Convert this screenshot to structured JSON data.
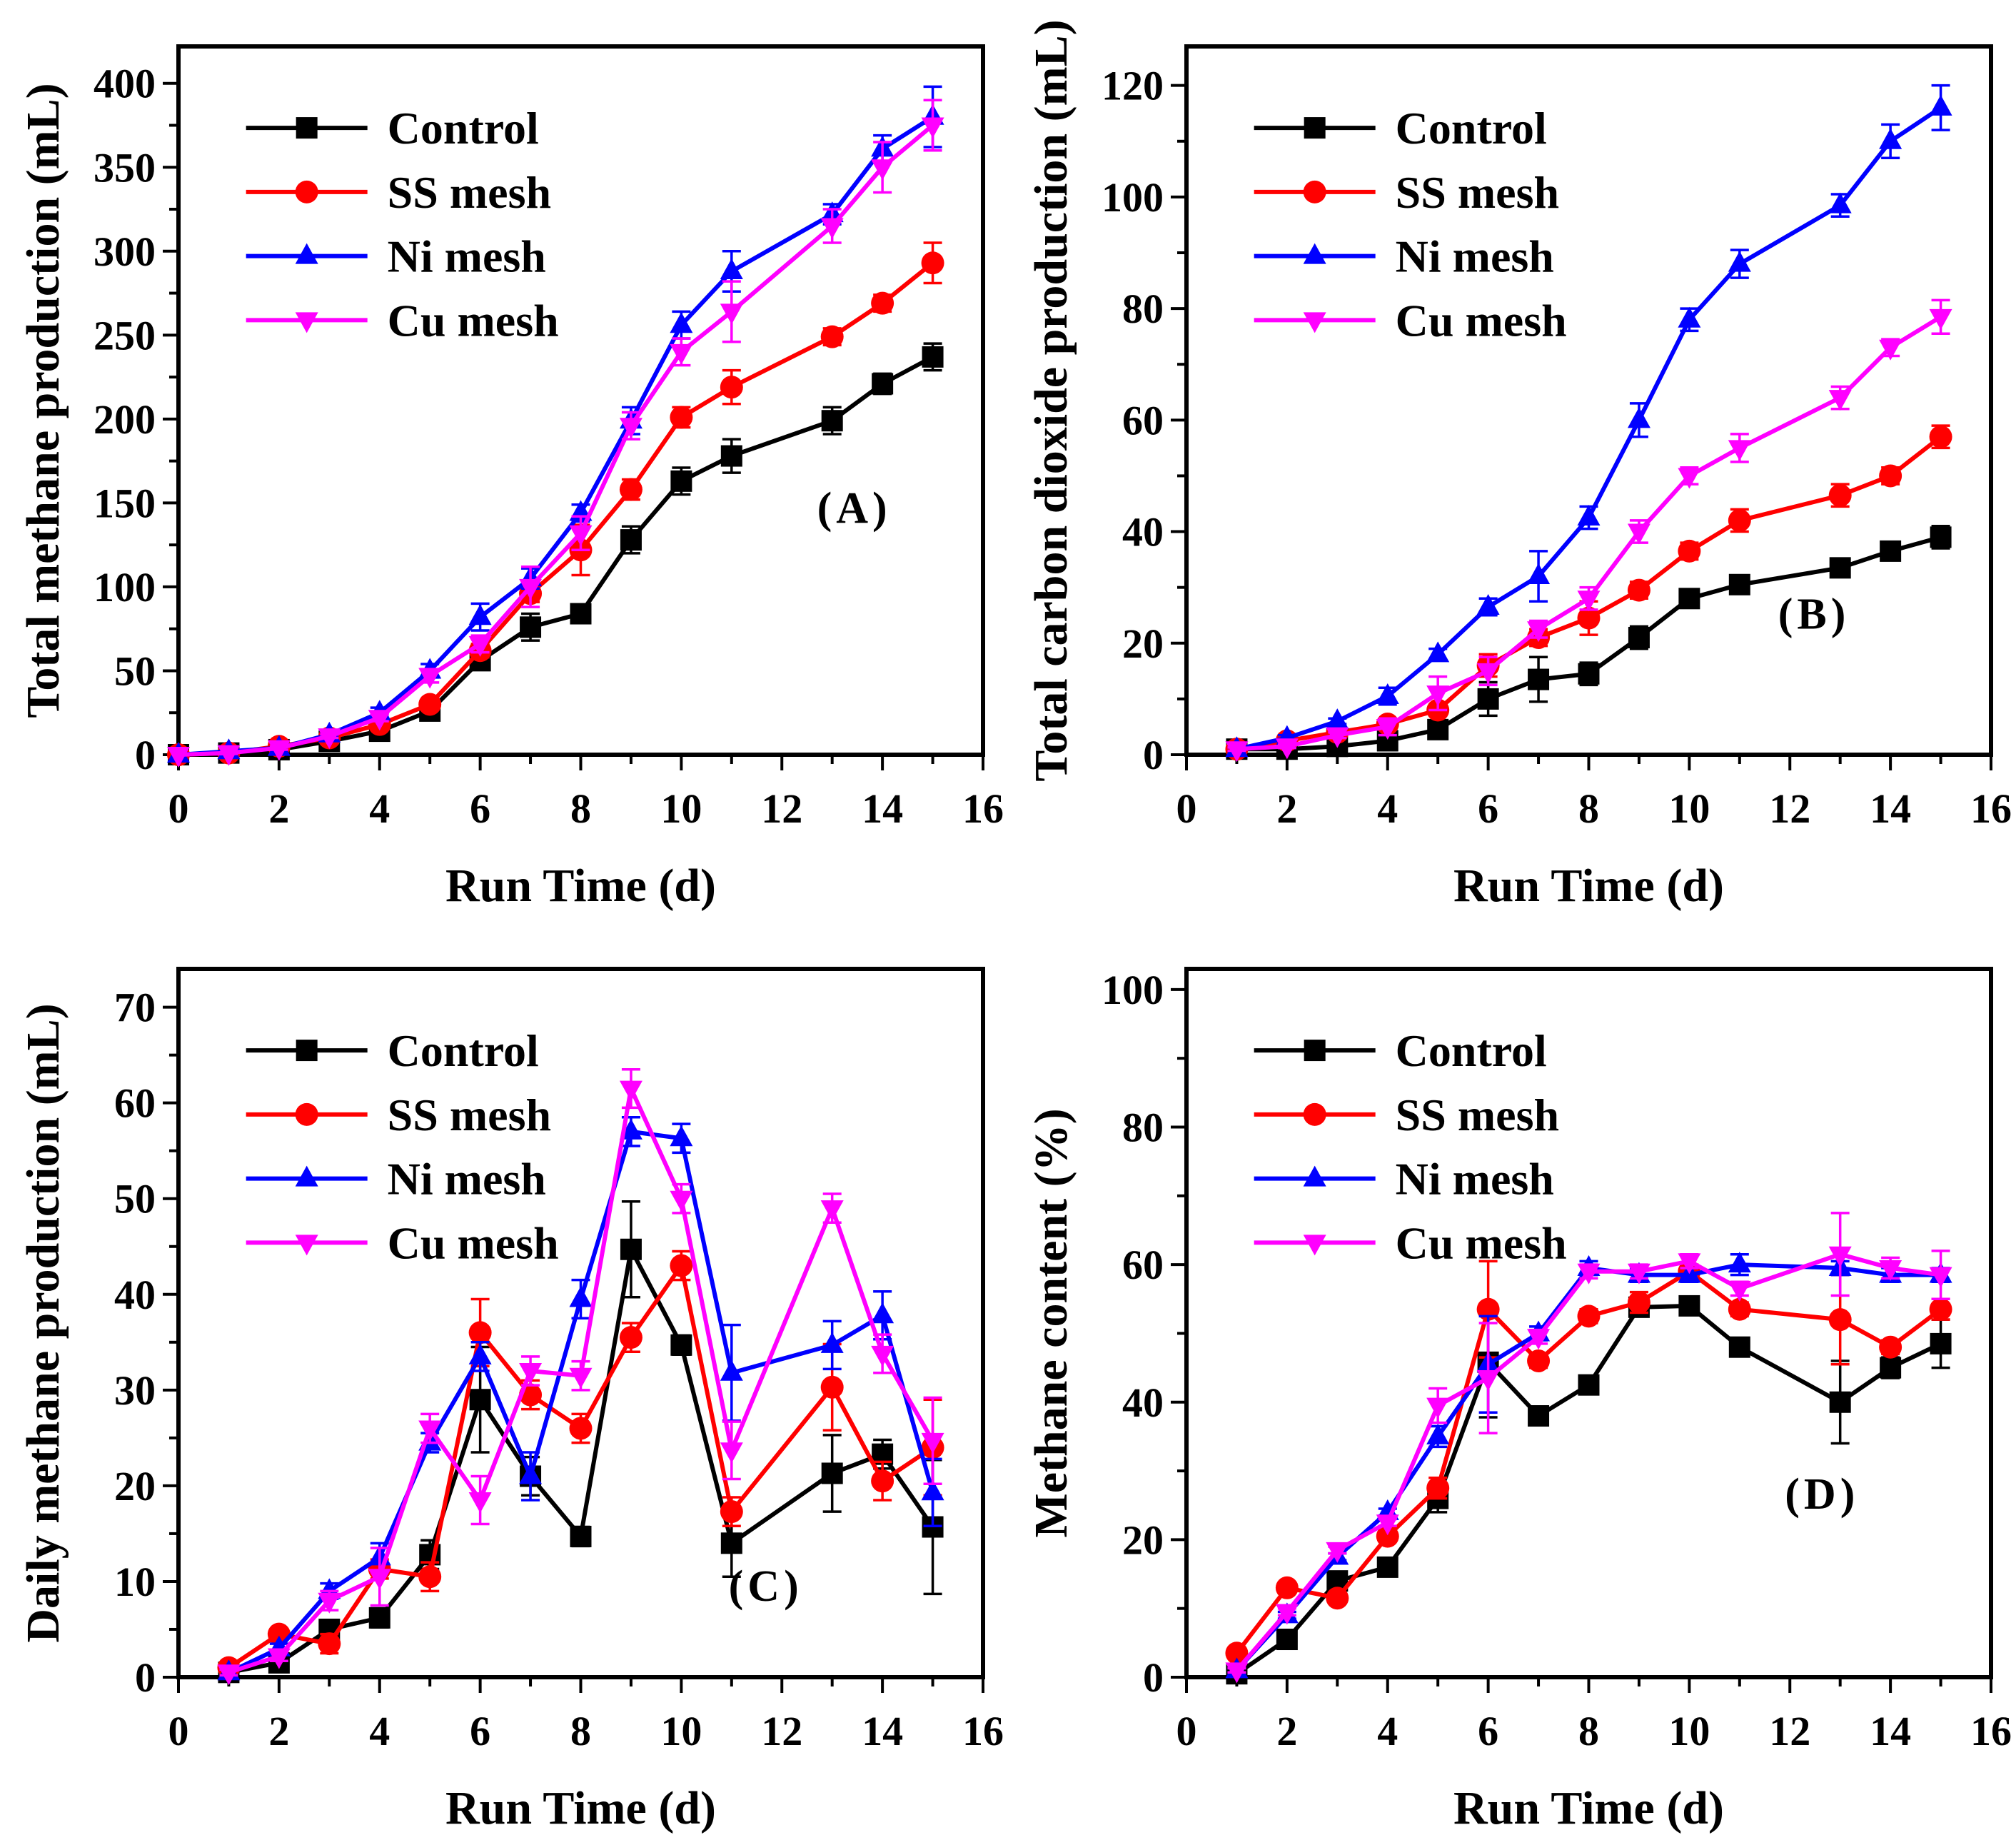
{
  "figure": {
    "background": "#FFFFFF",
    "x_axis_label": "Run Time (d)",
    "legend_labels": [
      "Control",
      "SS mesh",
      "Ni mesh",
      "Cu mesh"
    ],
    "colors": {
      "control": "#000000",
      "ss_mesh": "#FF0000",
      "ni_mesh": "#0000FF",
      "cu_mesh": "#FF00FF"
    },
    "markers": {
      "control": "square",
      "ss_mesh": "circle",
      "ni_mesh": "triangle-up",
      "cu_mesh": "triangle-down"
    }
  },
  "chart_data": [
    {
      "id": "A",
      "type": "line",
      "tag": "(A)",
      "title": "",
      "xlabel": "Run Time (d)",
      "ylabel": "Total methane production (mL)",
      "xlim": [
        0,
        16
      ],
      "ylim": [
        0,
        422
      ],
      "x_major": 2,
      "x_minor": 1,
      "y_major": 50,
      "y_minor": 25,
      "x_ticks": [
        0,
        2,
        4,
        6,
        8,
        10,
        12,
        14,
        16
      ],
      "y_ticks": [
        0,
        50,
        100,
        150,
        200,
        250,
        300,
        350,
        400
      ],
      "legend_position": "top-left",
      "grid": false,
      "tag_fx": 0.84,
      "tag_fy": 0.65,
      "x": [
        0,
        1,
        2,
        3,
        4,
        5,
        6,
        7,
        8,
        9,
        10,
        11,
        13,
        14,
        15
      ],
      "series": [
        {
          "name": "Control",
          "color": "#000000",
          "marker": "square",
          "values": [
            0,
            1,
            3,
            8,
            14,
            26,
            56,
            76,
            84,
            128,
            163,
            178,
            199,
            221,
            237
          ],
          "errors": [
            0,
            0.5,
            0.5,
            1,
            2,
            3,
            5,
            8,
            5,
            8,
            8,
            10,
            8,
            6,
            8
          ]
        },
        {
          "name": "SS mesh",
          "color": "#FF0000",
          "marker": "circle",
          "values": [
            0,
            1,
            5,
            10,
            18,
            30,
            62,
            96,
            122,
            158,
            201,
            219,
            249,
            269,
            293
          ],
          "errors": [
            0,
            0.5,
            1,
            1,
            2,
            3,
            4,
            5,
            15,
            6,
            6,
            10,
            5,
            5,
            12
          ]
        },
        {
          "name": "Ni mesh",
          "color": "#0000FF",
          "marker": "triangle-up",
          "values": [
            0,
            2,
            4,
            12,
            25,
            50,
            82,
            105,
            144,
            199,
            256,
            288,
            322,
            361,
            380
          ],
          "errors": [
            0,
            0.5,
            1,
            1,
            3,
            4,
            8,
            6,
            5,
            8,
            8,
            12,
            6,
            8,
            18
          ]
        },
        {
          "name": "Cu mesh",
          "color": "#FF00FF",
          "marker": "triangle-down",
          "values": [
            0,
            1,
            4,
            11,
            22,
            47,
            66,
            100,
            132,
            196,
            240,
            264,
            315,
            350,
            375
          ],
          "errors": [
            0,
            0.5,
            1,
            1,
            2,
            4,
            5,
            12,
            10,
            8,
            8,
            18,
            10,
            15,
            15
          ]
        }
      ]
    },
    {
      "id": "B",
      "type": "line",
      "tag": "(B)",
      "title": "",
      "xlabel": "Run Time (d)",
      "ylabel": "Total carbon dioxide production (mL)",
      "xlim": [
        0,
        16
      ],
      "ylim": [
        0,
        127
      ],
      "x_major": 2,
      "x_minor": 1,
      "y_major": 20,
      "y_minor": 10,
      "x_ticks": [
        0,
        2,
        4,
        6,
        8,
        10,
        12,
        14,
        16
      ],
      "y_ticks": [
        0,
        20,
        40,
        60,
        80,
        100,
        120
      ],
      "legend_position": "top-left",
      "grid": false,
      "tag_fx": 0.78,
      "tag_fy": 0.8,
      "x": [
        1,
        2,
        3,
        4,
        5,
        6,
        7,
        8,
        9,
        10,
        11,
        13,
        14,
        15
      ],
      "series": [
        {
          "name": "Control",
          "color": "#000000",
          "marker": "square",
          "values": [
            1,
            1,
            1.5,
            2.5,
            4.5,
            10,
            13.5,
            14.5,
            21,
            28,
            30.5,
            33.5,
            36.5,
            39
          ],
          "errors": [
            0.3,
            0.3,
            0.5,
            0.5,
            1,
            3,
            4,
            2,
            2,
            1.5,
            1.5,
            1.5,
            1.5,
            2
          ]
        },
        {
          "name": "SS mesh",
          "color": "#FF0000",
          "marker": "circle",
          "values": [
            1,
            2.5,
            4,
            5.5,
            8,
            16,
            21,
            24.5,
            29.5,
            36.5,
            42,
            46.5,
            50,
            57
          ],
          "errors": [
            0.3,
            0.5,
            0.5,
            1,
            1,
            2,
            1.5,
            3,
            1.5,
            1.5,
            2,
            2,
            1.5,
            2
          ]
        },
        {
          "name": "Ni mesh",
          "color": "#0000FF",
          "marker": "triangle-up",
          "values": [
            1,
            3,
            6,
            10.5,
            18,
            26.5,
            32,
            42.5,
            60,
            78,
            88,
            98.5,
            110,
            116
          ],
          "errors": [
            0.3,
            0.5,
            0.5,
            1.5,
            1,
            1.5,
            4.5,
            2,
            3,
            2,
            2.5,
            2,
            3,
            4
          ]
        },
        {
          "name": "Cu mesh",
          "color": "#FF00FF",
          "marker": "triangle-down",
          "values": [
            1,
            1.5,
            3.5,
            5,
            11,
            15,
            22.5,
            28,
            40,
            50,
            55,
            64,
            73,
            78.5
          ],
          "errors": [
            0.3,
            0.3,
            0.5,
            1.5,
            3,
            2.5,
            1.5,
            2,
            2,
            1.5,
            2.5,
            2,
            1.5,
            3
          ]
        }
      ]
    },
    {
      "id": "C",
      "type": "line",
      "tag": "(C)",
      "title": "",
      "xlabel": "Run Time (d)",
      "ylabel": "Daily methane production (mL)",
      "xlim": [
        0,
        16
      ],
      "ylim": [
        0,
        74
      ],
      "x_major": 2,
      "x_minor": 1,
      "y_major": 10,
      "y_minor": 5,
      "x_ticks": [
        0,
        2,
        4,
        6,
        8,
        10,
        12,
        14,
        16
      ],
      "y_ticks": [
        0,
        10,
        20,
        30,
        40,
        50,
        60,
        70
      ],
      "legend_position": "top-left",
      "grid": false,
      "tag_fx": 0.73,
      "tag_fy": 0.87,
      "x": [
        1,
        2,
        3,
        4,
        5,
        6,
        7,
        8,
        9,
        10,
        11,
        13,
        14,
        15
      ],
      "series": [
        {
          "name": "Control",
          "color": "#000000",
          "marker": "square",
          "values": [
            0.5,
            1.5,
            5,
            6.2,
            12.8,
            29,
            21,
            14.7,
            44.7,
            34.7,
            14,
            21.3,
            23.3,
            15.7
          ],
          "errors": [
            0.3,
            0.5,
            0.5,
            1,
            1.5,
            5.5,
            2,
            1,
            5,
            1,
            3.5,
            4,
            1.5,
            7
          ]
        },
        {
          "name": "SS mesh",
          "color": "#FF0000",
          "marker": "circle",
          "values": [
            1,
            4.5,
            3.5,
            11.3,
            10.5,
            36,
            29.5,
            26,
            35.5,
            43,
            17.3,
            30.3,
            20.5,
            24
          ],
          "errors": [
            0.3,
            0.5,
            1,
            1,
            1.5,
            3.5,
            1.5,
            1.5,
            1.5,
            1.5,
            1.5,
            4.5,
            2,
            5
          ]
        },
        {
          "name": "Ni mesh",
          "color": "#0000FF",
          "marker": "triangle-up",
          "values": [
            0.5,
            3,
            9,
            12.5,
            24.5,
            33.5,
            21,
            39.5,
            57,
            56.3,
            31.8,
            34.7,
            37.8,
            19.3
          ],
          "errors": [
            0.3,
            0.5,
            0.8,
            1.5,
            1,
            1.5,
            2.5,
            2,
            1.5,
            1.5,
            5,
            2.5,
            2.5,
            3.5
          ]
        },
        {
          "name": "Cu mesh",
          "color": "#FF00FF",
          "marker": "triangle-down",
          "values": [
            0.5,
            2.2,
            8,
            10.5,
            26,
            18.5,
            32,
            31.5,
            61.5,
            50,
            23.7,
            49,
            33.8,
            24.7
          ],
          "errors": [
            0.3,
            0.5,
            1,
            3,
            1.5,
            2.5,
            1.5,
            1.5,
            2,
            1.5,
            3,
            1.5,
            2,
            4.5
          ]
        }
      ]
    },
    {
      "id": "D",
      "type": "line",
      "tag": "(D)",
      "title": "",
      "xlabel": "Run Time (d)",
      "ylabel": "Methane content (%)",
      "xlim": [
        0,
        16
      ],
      "ylim": [
        0,
        103
      ],
      "x_major": 2,
      "x_minor": 1,
      "y_major": 20,
      "y_minor": 10,
      "x_ticks": [
        0,
        2,
        4,
        6,
        8,
        10,
        12,
        14,
        16
      ],
      "y_ticks": [
        0,
        20,
        40,
        60,
        80,
        100
      ],
      "legend_position": "top-left",
      "grid": false,
      "tag_fx": 0.79,
      "tag_fy": 0.74,
      "x": [
        1,
        2,
        3,
        4,
        5,
        6,
        7,
        8,
        9,
        10,
        11,
        13,
        14,
        15
      ],
      "series": [
        {
          "name": "Control",
          "color": "#000000",
          "marker": "square",
          "values": [
            0.5,
            5.5,
            14,
            16,
            26,
            45.8,
            38,
            42.5,
            53.8,
            54,
            48,
            40,
            45,
            48.5
          ],
          "errors": [
            0.3,
            0.5,
            0.5,
            0.5,
            2,
            8,
            1,
            1,
            1,
            1,
            1,
            6,
            1.5,
            3.5
          ]
        },
        {
          "name": "SS mesh",
          "color": "#FF0000",
          "marker": "circle",
          "values": [
            3.5,
            13,
            11.5,
            20.5,
            27.5,
            53.5,
            46,
            52.5,
            54.5,
            59,
            53.5,
            52,
            48,
            53.5
          ],
          "errors": [
            0.5,
            0.5,
            0.5,
            0.5,
            1.5,
            7,
            1,
            1,
            1.5,
            1,
            1,
            6.5,
            1,
            1.5
          ]
        },
        {
          "name": "Ni mesh",
          "color": "#0000FF",
          "marker": "triangle-up",
          "values": [
            1,
            9,
            17.5,
            24,
            35,
            45.5,
            50,
            59.5,
            58.5,
            58.5,
            60,
            59.5,
            58.5,
            58.5
          ],
          "errors": [
            0.3,
            0.5,
            0.5,
            0.5,
            1.5,
            7,
            1,
            1,
            1,
            1,
            1.5,
            1,
            1,
            1
          ]
        },
        {
          "name": "Cu mesh",
          "color": "#FF00FF",
          "marker": "triangle-down",
          "values": [
            1,
            9.5,
            18.5,
            22.5,
            39.5,
            43.5,
            49.5,
            59,
            59,
            60.5,
            56.5,
            61.5,
            59.5,
            58.5
          ],
          "errors": [
            0.3,
            0.5,
            0.5,
            0.5,
            2.5,
            8,
            1,
            1,
            1,
            1,
            1,
            6,
            1.5,
            3.5
          ]
        }
      ]
    }
  ]
}
